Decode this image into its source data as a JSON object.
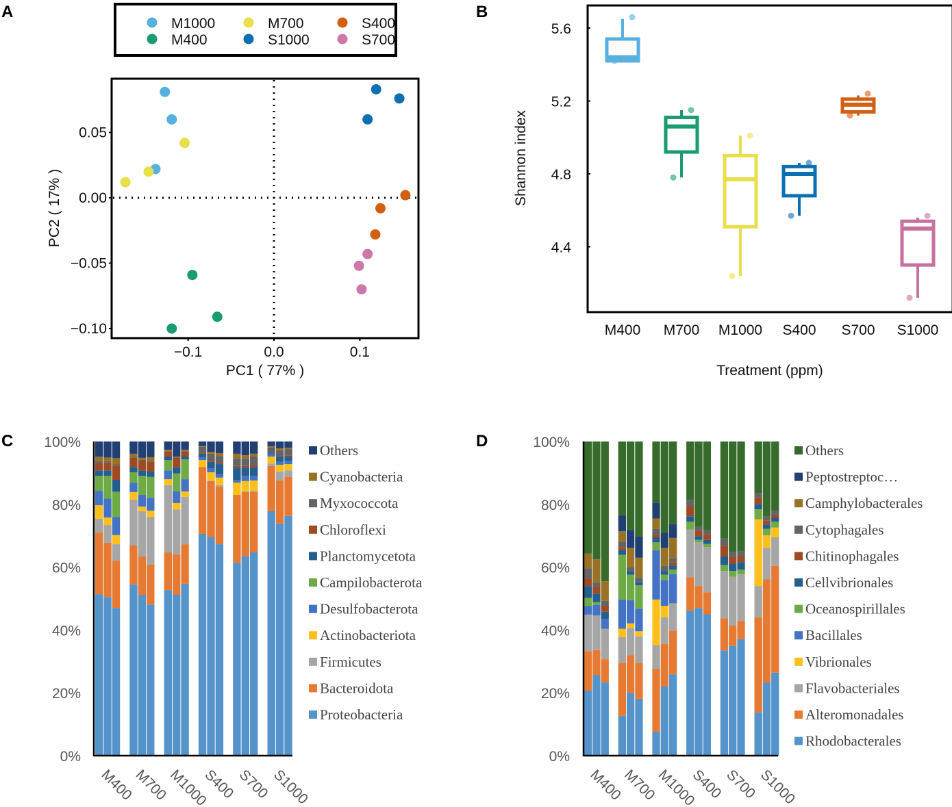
{
  "panels": {
    "a": "A",
    "b": "B",
    "c": "C",
    "d": "D"
  },
  "chart_data": [
    {
      "id": "A",
      "type": "scatter",
      "title": "",
      "xlabel": "PC1 ( 77% )",
      "ylabel": "PC2 ( 17% )",
      "xlim": [
        -0.19,
        0.17
      ],
      "ylim": [
        -0.105,
        0.092
      ],
      "xticks": [
        -0.1,
        0.0,
        0.1
      ],
      "xtick_labels": [
        "−0.1",
        "0.0",
        "0.1"
      ],
      "yticks": [
        0.05,
        0.0,
        -0.05,
        -0.1
      ],
      "ytick_labels": [
        "0.05",
        "0.00",
        "−0.05",
        "−0.10"
      ],
      "reference_lines": {
        "x": 0,
        "y": 0,
        "style": "dotted"
      },
      "legend_position": "top",
      "legend_columns": 3,
      "series": [
        {
          "name": "M1000",
          "color": "#56b0e0",
          "points": [
            [
              -0.127,
              0.081
            ],
            [
              -0.119,
              0.06
            ],
            [
              -0.138,
              0.022
            ]
          ]
        },
        {
          "name": "M400",
          "color": "#1a9b72",
          "points": [
            [
              -0.095,
              -0.059
            ],
            [
              -0.066,
              -0.091
            ],
            [
              -0.119,
              -0.1
            ]
          ]
        },
        {
          "name": "M700",
          "color": "#e9df4a",
          "points": [
            [
              -0.104,
              0.042
            ],
            [
              -0.146,
              0.02
            ],
            [
              -0.173,
              0.012
            ]
          ]
        },
        {
          "name": "S1000",
          "color": "#0c70b0",
          "points": [
            [
              0.119,
              0.083
            ],
            [
              0.146,
              0.076
            ],
            [
              0.109,
              0.06
            ]
          ]
        },
        {
          "name": "S400",
          "color": "#d35f12",
          "points": [
            [
              0.153,
              0.002
            ],
            [
              0.124,
              -0.008
            ],
            [
              0.118,
              -0.028
            ]
          ]
        },
        {
          "name": "S700",
          "color": "#cc78a8",
          "points": [
            [
              0.109,
              -0.043
            ],
            [
              0.099,
              -0.052
            ],
            [
              0.102,
              -0.07
            ]
          ]
        }
      ]
    },
    {
      "id": "B",
      "type": "box",
      "title": "",
      "xlabel": "Treatment (ppm)",
      "ylabel": "Shannon index",
      "ylim": [
        4.05,
        5.72
      ],
      "yticks": [
        5.6,
        5.2,
        4.8,
        4.4
      ],
      "ytick_labels": [
        "5.6",
        "5.2",
        "4.8",
        "4.4"
      ],
      "categories": [
        "M400",
        "M700",
        "M1000",
        "S400",
        "S700",
        "S1000"
      ],
      "boxes": [
        {
          "name": "M400",
          "color": "#56b0e0",
          "whisker_low": 5.42,
          "q1": 5.42,
          "median": 5.44,
          "q3": 5.54,
          "whisker_high": 5.65,
          "points": [
            5.66,
            5.42
          ]
        },
        {
          "name": "M700",
          "color": "#1a9b72",
          "whisker_low": 4.78,
          "q1": 4.92,
          "median": 5.06,
          "q3": 5.11,
          "whisker_high": 5.15,
          "points": [
            5.15,
            4.78
          ]
        },
        {
          "name": "M1000",
          "color": "#e9df4a",
          "whisker_low": 4.24,
          "q1": 4.51,
          "median": 4.77,
          "q3": 4.9,
          "whisker_high": 5.01,
          "points": [
            5.01,
            4.24
          ]
        },
        {
          "name": "S400",
          "color": "#0c70b0",
          "whisker_low": 4.57,
          "q1": 4.68,
          "median": 4.8,
          "q3": 4.84,
          "whisker_high": 4.86,
          "points": [
            4.86,
            4.57
          ]
        },
        {
          "name": "S700",
          "color": "#d35f12",
          "whisker_low": 5.12,
          "q1": 5.14,
          "median": 5.18,
          "q3": 5.21,
          "whisker_high": 5.23,
          "points": [
            5.24,
            5.12
          ]
        },
        {
          "name": "S1000",
          "color": "#c8719f",
          "whisker_low": 4.12,
          "q1": 4.3,
          "median": 4.5,
          "q3": 4.54,
          "whisker_high": 4.56,
          "points": [
            4.57,
            4.12
          ]
        }
      ]
    },
    {
      "id": "C",
      "type": "bar",
      "stacked": true,
      "title": "",
      "xlabel": "",
      "ylabel": "",
      "ylim": [
        0,
        100
      ],
      "ytick_labels": [
        "0%",
        "20%",
        "40%",
        "60%",
        "80%",
        "100%"
      ],
      "categories": [
        "M400",
        "M700",
        "M1000",
        "S400",
        "S700",
        "S1000"
      ],
      "replicates_per_group": 3,
      "legend_position": "right",
      "series": [
        {
          "name": "Proteobacteria",
          "color": "#5593cb"
        },
        {
          "name": "Bacteroidota",
          "color": "#e67a33"
        },
        {
          "name": "Firmicutes",
          "color": "#a6a6a6"
        },
        {
          "name": "Actinobacteriota",
          "color": "#fdbf1c"
        },
        {
          "name": "Desulfobacterota",
          "color": "#4472c4"
        },
        {
          "name": "Campilobacterota",
          "color": "#6eab46"
        },
        {
          "name": "Planctomycetota",
          "color": "#245e8f"
        },
        {
          "name": "Chloroflexi",
          "color": "#9e4a22"
        },
        {
          "name": "Myxococcota",
          "color": "#646464"
        },
        {
          "name": "Cyanobacteria",
          "color": "#987326"
        },
        {
          "name": "Others",
          "color": "#223f74"
        }
      ],
      "bars": [
        {
          "group": "M400",
          "values": [
            51.4,
            19.6,
            4.4,
            4.3,
            4.6,
            4.8,
            1.7,
            2.4,
            0.5,
            1.5,
            4.8
          ]
        },
        {
          "group": "M400",
          "values": [
            50.5,
            17.3,
            5.6,
            2.4,
            6.0,
            7.3,
            1.7,
            2.5,
            0.4,
            1.2,
            5.1
          ]
        },
        {
          "group": "M400",
          "values": [
            47.0,
            15.1,
            5.2,
            2.9,
            5.8,
            8.0,
            3.8,
            4.5,
            0.4,
            2.0,
            5.3
          ]
        },
        {
          "group": "M700",
          "values": [
            54.5,
            12.4,
            14.6,
            2.4,
            3.0,
            3.3,
            1.7,
            2.9,
            0.3,
            1.0,
            3.9
          ]
        },
        {
          "group": "M700",
          "values": [
            51.2,
            12.2,
            14.4,
            1.5,
            3.7,
            6.1,
            1.7,
            3.1,
            0.3,
            0.6,
            5.2
          ]
        },
        {
          "group": "M700",
          "values": [
            48.1,
            12.7,
            15.2,
            2.0,
            4.1,
            6.6,
            1.7,
            3.1,
            0.3,
            1.2,
            5.0
          ]
        },
        {
          "group": "M1000",
          "values": [
            52.7,
            12.0,
            21.4,
            1.9,
            2.8,
            3.3,
            1.1,
            1.7,
            0.2,
            0.3,
            2.6
          ]
        },
        {
          "group": "M1000",
          "values": [
            51.2,
            12.9,
            14.3,
            2.0,
            3.7,
            5.7,
            1.9,
            3.1,
            0.2,
            0.2,
            4.8
          ]
        },
        {
          "group": "M1000",
          "values": [
            54.7,
            12.6,
            15.1,
            1.7,
            3.9,
            6.3,
            0.9,
            1.7,
            0.2,
            0.3,
            2.6
          ]
        },
        {
          "group": "S400",
          "values": [
            70.6,
            21.3,
            0.0,
            2.2,
            0.9,
            0.0,
            1.1,
            0.2,
            2.0,
            0.2,
            1.5
          ]
        },
        {
          "group": "S400",
          "values": [
            69.5,
            17.9,
            0.2,
            2.6,
            1.3,
            0.0,
            2.0,
            0.4,
            2.2,
            0.6,
            3.3
          ]
        },
        {
          "group": "S400",
          "values": [
            67.3,
            18.3,
            0.5,
            2.4,
            1.0,
            0.0,
            3.3,
            0.4,
            2.2,
            0.9,
            3.7
          ]
        },
        {
          "group": "S700",
          "values": [
            61.4,
            21.6,
            0.0,
            3.9,
            0.9,
            0.0,
            3.9,
            0.5,
            2.4,
            1.5,
            3.9
          ]
        },
        {
          "group": "S700",
          "values": [
            63.4,
            20.5,
            0.2,
            3.3,
            1.7,
            0.0,
            2.6,
            0.5,
            2.4,
            1.0,
            4.4
          ]
        },
        {
          "group": "S700",
          "values": [
            64.7,
            19.2,
            0.4,
            3.3,
            1.5,
            0.0,
            2.8,
            0.7,
            2.6,
            0.9,
            3.9
          ]
        },
        {
          "group": "S1000",
          "values": [
            77.8,
            14.4,
            0.8,
            2.2,
            0.9,
            0.0,
            0.4,
            0.2,
            1.5,
            0.3,
            1.5
          ]
        },
        {
          "group": "S1000",
          "values": [
            73.9,
            13.7,
            2.8,
            2.2,
            0.9,
            0.0,
            1.7,
            0.2,
            1.8,
            0.6,
            2.2
          ]
        },
        {
          "group": "S1000",
          "values": [
            76.3,
            12.4,
            2.1,
            2.0,
            1.1,
            0.0,
            1.3,
            0.4,
            2.0,
            0.4,
            2.0
          ]
        }
      ]
    },
    {
      "id": "D",
      "type": "bar",
      "stacked": true,
      "title": "",
      "xlabel": "",
      "ylabel": "",
      "ylim": [
        0,
        100
      ],
      "ytick_labels": [
        "0%",
        "20%",
        "40%",
        "60%",
        "80%",
        "100%"
      ],
      "categories": [
        "M400",
        "M700",
        "M1000",
        "S400",
        "S700",
        "S1000"
      ],
      "replicates_per_group": 3,
      "legend_position": "right",
      "series": [
        {
          "name": "Rhodobacterales",
          "color": "#5593cb"
        },
        {
          "name": "Alteromonadales",
          "color": "#e67a33"
        },
        {
          "name": "Flavobacteriales",
          "color": "#a6a6a6"
        },
        {
          "name": "Vibrionales",
          "color": "#fdbf1c"
        },
        {
          "name": "Bacillales",
          "color": "#4472c4"
        },
        {
          "name": "Oceanospirillales",
          "color": "#6eab46"
        },
        {
          "name": "Cellvibrionales",
          "color": "#245e8f"
        },
        {
          "name": "Chitinophagales",
          "color": "#9e4a22"
        },
        {
          "name": "Cytophagales",
          "color": "#646464"
        },
        {
          "name": "Camphylobacterales",
          "color": "#987326"
        },
        {
          "name": "Peptostreptoc…",
          "color": "#223f74"
        },
        {
          "name": "Others",
          "color": "#376b2c"
        }
      ],
      "bars": [
        {
          "group": "M400",
          "values": [
            20.7,
            12.5,
            11.7,
            0.0,
            2.7,
            2.6,
            3.8,
            2.3,
            3.3,
            4.7,
            0.0,
            35.7
          ]
        },
        {
          "group": "M400",
          "values": [
            25.6,
            8.0,
            11.0,
            0.0,
            3.4,
            0.9,
            2.6,
            2.1,
            1.5,
            7.4,
            0.0,
            37.5
          ]
        },
        {
          "group": "M400",
          "values": [
            23.3,
            7.4,
            9.7,
            0.0,
            3.1,
            0.0,
            2.3,
            1.9,
            1.6,
            6.2,
            0.0,
            44.5
          ]
        },
        {
          "group": "M700",
          "values": [
            12.7,
            16.8,
            8.2,
            2.7,
            9.3,
            14.2,
            1.6,
            0.9,
            1.7,
            3.3,
            5.1,
            23.5
          ]
        },
        {
          "group": "M700",
          "values": [
            20.0,
            12.0,
            8.6,
            1.5,
            7.4,
            8.1,
            1.2,
            0.0,
            1.2,
            6.1,
            5.7,
            28.2
          ]
        },
        {
          "group": "M700",
          "values": [
            18.1,
            11.4,
            8.5,
            1.6,
            7.2,
            7.4,
            1.1,
            0.0,
            1.5,
            6.2,
            6.7,
            30.3
          ]
        },
        {
          "group": "M1000",
          "values": [
            7.6,
            20.0,
            7.6,
            14.5,
            15.7,
            2.5,
            1.6,
            1.0,
            1.7,
            3.3,
            4.9,
            19.6
          ]
        },
        {
          "group": "M1000",
          "values": [
            22.0,
            13.5,
            8.5,
            3.7,
            8.2,
            1.7,
            1.2,
            0.0,
            1.6,
            5.7,
            4.9,
            29.0
          ]
        },
        {
          "group": "M1000",
          "values": [
            25.9,
            13.9,
            8.7,
            0.0,
            9.3,
            1.4,
            1.4,
            1.0,
            1.3,
            6.4,
            4.5,
            26.2
          ]
        },
        {
          "group": "S400",
          "values": [
            46.2,
            10.6,
            15.2,
            0.0,
            0.0,
            2.5,
            1.7,
            3.1,
            2.1,
            0.0,
            0.0,
            18.6
          ]
        },
        {
          "group": "S400",
          "values": [
            47.0,
            7.0,
            13.9,
            0.0,
            0.0,
            0.8,
            1.2,
            1.8,
            1.1,
            0.0,
            0.0,
            27.2
          ]
        },
        {
          "group": "S400",
          "values": [
            45.0,
            7.0,
            14.4,
            0.0,
            0.0,
            1.0,
            1.3,
            1.8,
            1.2,
            0.0,
            0.0,
            28.3
          ]
        },
        {
          "group": "S700",
          "values": [
            33.5,
            10.2,
            15.1,
            0.0,
            0.0,
            1.9,
            2.7,
            3.4,
            2.3,
            0.0,
            0.0,
            30.9
          ]
        },
        {
          "group": "S700",
          "values": [
            34.9,
            6.5,
            15.5,
            0.0,
            0.0,
            1.9,
            2.3,
            2.2,
            1.5,
            0.0,
            0.0,
            35.2
          ]
        },
        {
          "group": "S700",
          "values": [
            37.1,
            5.8,
            14.8,
            0.0,
            0.0,
            1.5,
            2.4,
            1.8,
            1.6,
            0.0,
            0.0,
            35.0
          ]
        },
        {
          "group": "S1000",
          "values": [
            13.7,
            30.3,
            10.0,
            21.2,
            0.0,
            3.2,
            1.7,
            2.0,
            1.4,
            0.0,
            0.0,
            16.5
          ]
        },
        {
          "group": "S1000",
          "values": [
            23.3,
            32.8,
            10.1,
            3.9,
            0.0,
            2.1,
            1.4,
            1.2,
            1.3,
            0.0,
            0.0,
            23.9
          ]
        },
        {
          "group": "S1000",
          "values": [
            26.4,
            34.0,
            9.1,
            3.1,
            0.0,
            1.9,
            1.2,
            1.0,
            1.3,
            0.0,
            0.0,
            22.0
          ]
        }
      ]
    }
  ]
}
